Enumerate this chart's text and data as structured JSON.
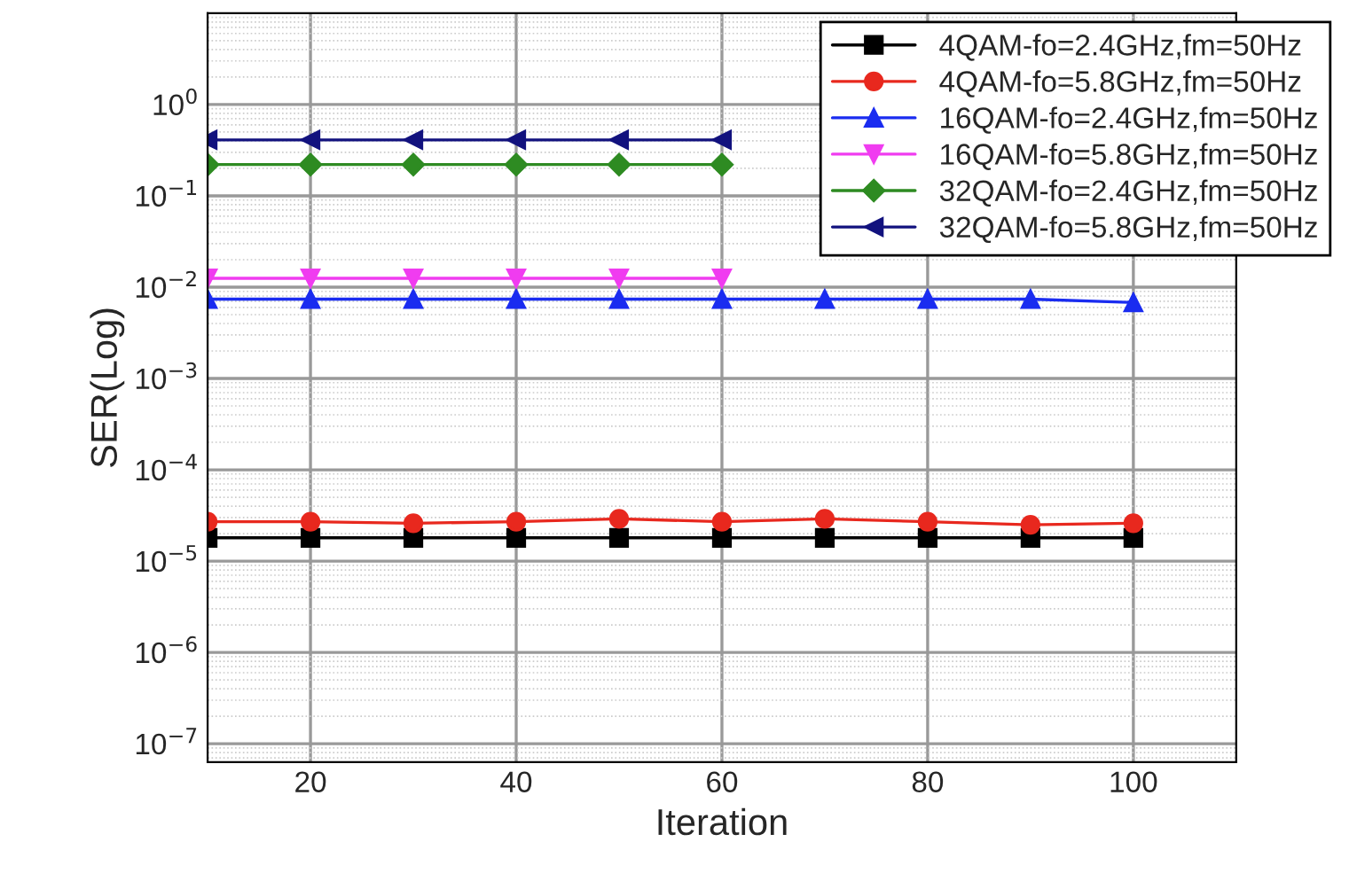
{
  "chart_data": {
    "type": "line",
    "xlabel": "Iteration",
    "ylabel": "SER(Log)",
    "log": "y",
    "x": [
      10,
      20,
      30,
      40,
      50,
      60,
      70,
      80,
      90,
      100
    ],
    "xlim": [
      10,
      110
    ],
    "xticks": [
      20,
      40,
      60,
      80,
      100
    ],
    "ylim": [
      6.3e-08,
      10
    ],
    "yticks": [
      {
        "value": 1,
        "label": "10$^{0}$"
      },
      {
        "value": 0.1,
        "label": "10$^{−1}$"
      },
      {
        "value": 0.01,
        "label": "10$^{−2}$"
      },
      {
        "value": 0.001,
        "label": "10$^{−3}$"
      },
      {
        "value": 0.0001,
        "label": "10$^{−4}$"
      },
      {
        "value": 1e-05,
        "label": "10$^{−5}$"
      },
      {
        "value": 1e-06,
        "label": "10$^{−6}$"
      },
      {
        "value": 1e-07,
        "label": "10$^{−7}$"
      }
    ],
    "grid": true,
    "legend": "top right",
    "line_style": "solid",
    "series": [
      {
        "name": "4QAM-fo=2.4GHz,fm=50Hz",
        "color": "#000000",
        "marker": "square",
        "values": [
          1.8e-05,
          1.8e-05,
          1.8e-05,
          1.8e-05,
          1.8e-05,
          1.8e-05,
          1.8e-05,
          1.8e-05,
          1.8e-05,
          1.8e-05
        ]
      },
      {
        "name": "4QAM-fo=5.8GHz,fm=50Hz",
        "color": "#e8281e",
        "marker": "circle",
        "values": [
          2.7e-05,
          2.7e-05,
          2.6e-05,
          2.7e-05,
          2.9e-05,
          2.7e-05,
          2.9e-05,
          2.7e-05,
          2.5e-05,
          2.6e-05
        ]
      },
      {
        "name": "16QAM-fo=2.4GHz,fm=50Hz",
        "color": "#1a2cf0",
        "marker": "triangle",
        "values": [
          0.0074,
          0.0074,
          0.0074,
          0.0074,
          0.0074,
          0.0074,
          0.0074,
          0.0074,
          0.0074,
          0.0068
        ]
      },
      {
        "name": "16QAM-fo=5.8GHz,fm=50Hz",
        "color": "#f03cf0",
        "marker": "triangle_down",
        "values": [
          0.0125,
          0.0125,
          0.0125,
          0.0125,
          0.0125,
          0.0125,
          null,
          null,
          null,
          null
        ]
      },
      {
        "name": "32QAM-fo=2.4GHz,fm=50Hz",
        "color": "#2e8b22",
        "marker": "diamond",
        "values": [
          0.22,
          0.22,
          0.22,
          0.22,
          0.22,
          0.22,
          null,
          null,
          null,
          null
        ]
      },
      {
        "name": "32QAM-fo=5.8GHz,fm=50Hz",
        "color": "#12127e",
        "marker": "triangle_left",
        "values": [
          0.41,
          0.41,
          0.41,
          0.41,
          0.41,
          0.41,
          null,
          null,
          null,
          null
        ]
      }
    ]
  }
}
